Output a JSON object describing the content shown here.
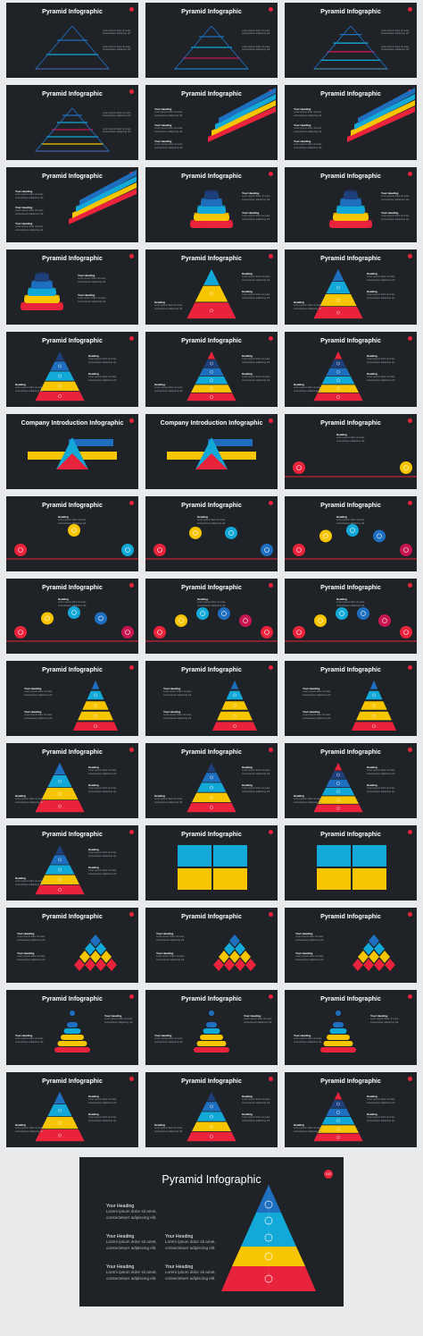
{
  "page": {
    "titles": {
      "pyramid": "Pyramid Infographic",
      "company": "Company Introduction Infographic"
    },
    "labels": {
      "heading": "Heading",
      "your_heading": "Your Heading",
      "lorem": "Lorem ipsum dolor sit amet,",
      "consectetuer": "consectetuer adipiscing elit."
    },
    "featured": {
      "title": "Pyramid Infographic",
      "badge": "102",
      "items": [
        {
          "heading": "Your Heading",
          "line1": "Lorem ipsum dolor sit amet,",
          "line2": "consectetuer adipiscing elit."
        },
        {
          "heading": "Your Heading",
          "line1": "Lorem ipsum dolor sit amet,",
          "line2": "consectetuer adipiscing elit."
        },
        {
          "heading": "Your Heading",
          "line1": "Lorem ipsum dolor sit amet,",
          "line2": "consectetuer adipiscing elit."
        },
        {
          "heading": "Your Heading",
          "line1": "Lorem ipsum dolor sit amet,",
          "line2": "consectetuer adipiscing elit."
        },
        {
          "heading": "Your Heading",
          "line1": "Lorem ipsum dolor sit amet,",
          "line2": "consectetuer adipiscing elit."
        }
      ]
    },
    "colors": {
      "slide_bg": "#1f2227",
      "page_bg": "#e9eaec",
      "red": "#e8233b",
      "yellow": "#f7c600",
      "cyan": "#12a9d8",
      "blue": "#1e6fc0",
      "navy": "#1d3f7a",
      "magenta": "#c8154f"
    }
  }
}
